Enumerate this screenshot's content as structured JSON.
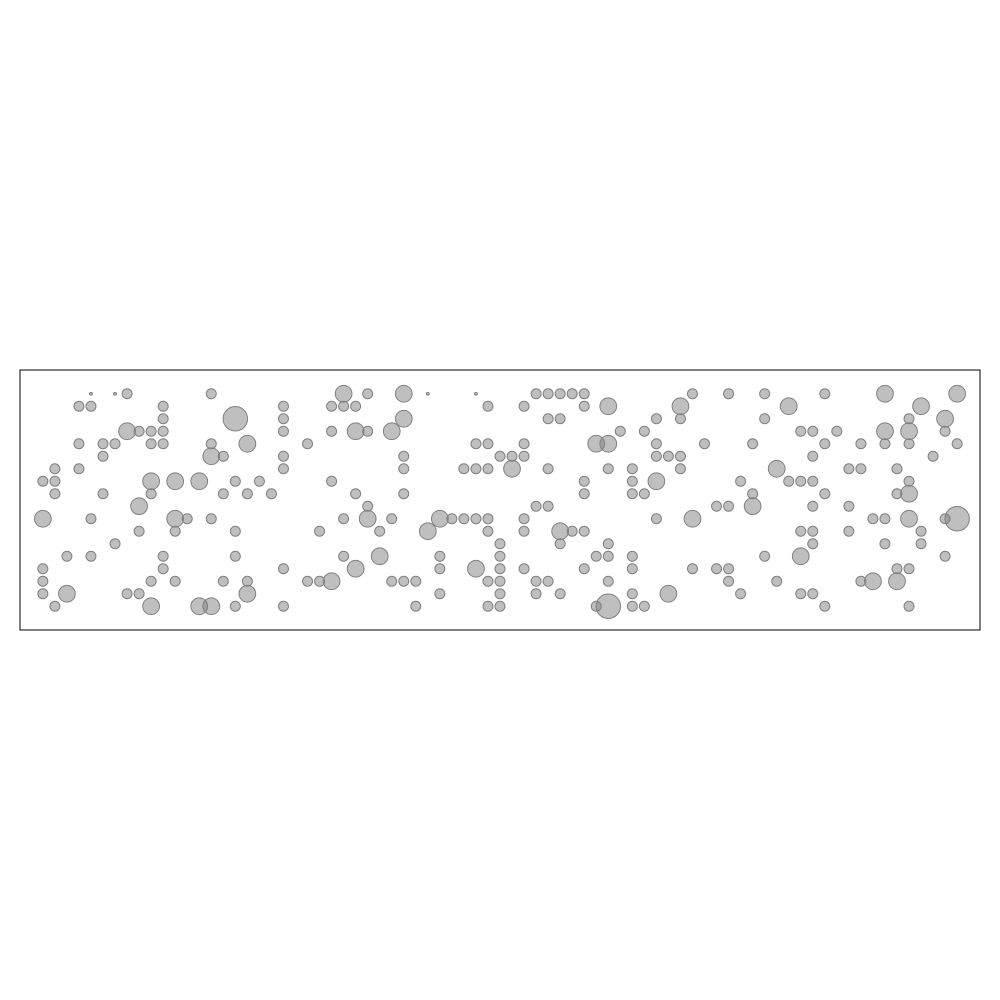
{
  "chart_data": {
    "type": "scatter",
    "color": "#808080",
    "xlim": [
      -1.9,
      77.9
    ],
    "ylim": [
      -1.9,
      18.9
    ],
    "x": [
      4,
      6,
      7,
      14,
      25,
      27,
      30,
      32,
      36,
      41,
      42,
      43,
      44,
      45,
      54,
      57,
      60,
      65,
      70,
      76,
      3,
      4,
      10,
      20,
      24,
      25,
      26,
      37,
      40,
      45,
      47,
      53,
      62,
      73,
      10,
      16,
      20,
      30,
      42,
      43,
      51,
      53,
      60,
      72,
      75,
      7,
      8,
      9,
      10,
      20,
      24,
      26,
      27,
      29,
      48,
      50,
      63,
      64,
      66,
      70,
      72,
      75,
      3,
      5,
      6,
      9,
      10,
      14,
      17,
      22,
      36,
      37,
      40,
      46,
      47,
      51,
      55,
      59,
      65,
      68,
      70,
      72,
      76,
      5,
      14,
      15,
      20,
      30,
      38,
      39,
      40,
      51,
      52,
      53,
      64,
      74,
      1,
      3,
      20,
      30,
      35,
      36,
      37,
      39,
      42,
      47,
      49,
      53,
      61,
      67,
      68,
      71,
      0,
      1,
      9,
      11,
      13,
      16,
      18,
      24,
      45,
      49,
      51,
      58,
      62,
      63,
      64,
      72,
      1,
      5,
      9,
      15,
      17,
      19,
      26,
      30,
      45,
      49,
      50,
      59,
      65,
      71,
      72,
      8,
      27,
      41,
      42,
      56,
      57,
      59,
      64,
      67,
      0,
      4,
      11,
      12,
      14,
      25,
      27,
      29,
      33,
      34,
      35,
      36,
      37,
      40,
      51,
      54,
      69,
      70,
      72,
      75,
      76,
      8,
      11,
      16,
      23,
      28,
      32,
      37,
      40,
      43,
      44,
      45,
      63,
      64,
      67,
      73,
      6,
      38,
      43,
      47,
      64,
      70,
      73,
      2,
      4,
      10,
      16,
      25,
      28,
      33,
      38,
      46,
      47,
      49,
      60,
      63,
      75,
      0,
      10,
      20,
      26,
      33,
      36,
      38,
      40,
      45,
      49,
      54,
      56,
      57,
      71,
      72,
      0,
      9,
      11,
      15,
      17,
      22,
      23,
      24,
      29,
      30,
      31,
      37,
      38,
      41,
      42,
      47,
      57,
      61,
      68,
      69,
      71,
      0,
      2,
      7,
      8,
      17,
      33,
      38,
      41,
      43,
      49,
      52,
      58,
      63,
      64,
      1,
      9,
      13,
      14,
      16,
      20,
      31,
      37,
      38,
      46,
      47,
      49,
      50,
      65,
      72
    ],
    "y": [
      17,
      17,
      17,
      17,
      17,
      17,
      17,
      17,
      17,
      17,
      17,
      17,
      17,
      17,
      17,
      17,
      17,
      17,
      17,
      17,
      16,
      16,
      16,
      16,
      16,
      16,
      16,
      16,
      16,
      16,
      16,
      16,
      16,
      16,
      15,
      15,
      15,
      15,
      15,
      15,
      15,
      15,
      15,
      15,
      15,
      14,
      14,
      14,
      14,
      14,
      14,
      14,
      14,
      14,
      14,
      14,
      14,
      14,
      14,
      14,
      14,
      14,
      13,
      13,
      13,
      13,
      13,
      13,
      13,
      13,
      13,
      13,
      13,
      13,
      13,
      13,
      13,
      13,
      13,
      13,
      13,
      13,
      13,
      12,
      12,
      12,
      12,
      12,
      12,
      12,
      12,
      12,
      12,
      12,
      12,
      12,
      11,
      11,
      11,
      11,
      11,
      11,
      11,
      11,
      11,
      11,
      11,
      11,
      11,
      11,
      11,
      11,
      10,
      10,
      10,
      10,
      10,
      10,
      10,
      10,
      10,
      10,
      10,
      10,
      10,
      10,
      10,
      10,
      9,
      9,
      9,
      9,
      9,
      9,
      9,
      9,
      9,
      9,
      9,
      9,
      9,
      9,
      9,
      8,
      8,
      8,
      8,
      8,
      8,
      8,
      8,
      8,
      7,
      7,
      7,
      7,
      7,
      7,
      7,
      7,
      7,
      7,
      7,
      7,
      7,
      7,
      7,
      7,
      7,
      7,
      7,
      7,
      7,
      6,
      6,
      6,
      6,
      6,
      6,
      6,
      6,
      6,
      6,
      6,
      6,
      6,
      6,
      6,
      5,
      5,
      5,
      5,
      5,
      5,
      5,
      4,
      4,
      4,
      4,
      4,
      4,
      4,
      4,
      4,
      4,
      4,
      4,
      4,
      4,
      3,
      3,
      3,
      3,
      3,
      3,
      3,
      3,
      3,
      3,
      3,
      3,
      3,
      3,
      3,
      2,
      2,
      2,
      2,
      2,
      2,
      2,
      2,
      2,
      2,
      2,
      2,
      2,
      2,
      2,
      2,
      2,
      2,
      2,
      2,
      2,
      1,
      1,
      1,
      1,
      1,
      1,
      1,
      1,
      1,
      1,
      1,
      1,
      1,
      1,
      0,
      0,
      0,
      0,
      0,
      0,
      0,
      0,
      0,
      0,
      0,
      0,
      0,
      0,
      0
    ],
    "sizes": [
      2,
      2,
      25,
      25,
      70,
      25,
      70,
      2,
      2,
      25,
      25,
      25,
      25,
      25,
      25,
      25,
      25,
      25,
      70,
      70,
      25,
      25,
      25,
      25,
      25,
      25,
      25,
      25,
      25,
      25,
      70,
      70,
      70,
      70,
      25,
      150,
      25,
      70,
      25,
      25,
      25,
      25,
      25,
      25,
      70,
      70,
      25,
      25,
      25,
      25,
      25,
      70,
      25,
      70,
      25,
      25,
      25,
      25,
      25,
      70,
      70,
      25,
      25,
      25,
      25,
      25,
      25,
      25,
      70,
      25,
      25,
      25,
      25,
      70,
      70,
      25,
      25,
      25,
      25,
      25,
      25,
      25,
      25,
      25,
      70,
      25,
      25,
      25,
      25,
      25,
      25,
      25,
      25,
      25,
      25,
      25,
      25,
      25,
      25,
      25,
      25,
      25,
      25,
      70,
      25,
      25,
      25,
      25,
      70,
      25,
      25,
      25,
      25,
      25,
      70,
      70,
      70,
      25,
      25,
      25,
      25,
      25,
      70,
      25,
      25,
      25,
      25,
      25,
      25,
      25,
      25,
      25,
      25,
      25,
      25,
      25,
      25,
      25,
      25,
      25,
      25,
      25,
      70,
      70,
      25,
      25,
      25,
      25,
      25,
      70,
      25,
      25,
      70,
      25,
      70,
      25,
      25,
      25,
      70,
      25,
      70,
      25,
      25,
      25,
      25,
      25,
      25,
      70,
      25,
      25,
      70,
      25,
      150,
      25,
      25,
      25,
      25,
      25,
      70,
      25,
      25,
      70,
      25,
      25,
      25,
      25,
      25,
      25,
      25,
      25,
      25,
      25,
      25,
      25,
      25,
      25,
      25,
      25,
      25,
      25,
      70,
      25,
      25,
      25,
      25,
      25,
      25,
      70,
      25,
      25,
      25,
      25,
      70,
      25,
      70,
      25,
      25,
      25,
      25,
      25,
      25,
      25,
      25,
      25,
      25,
      25,
      25,
      25,
      25,
      25,
      25,
      70,
      25,
      25,
      25,
      25,
      25,
      25,
      25,
      25,
      25,
      25,
      25,
      70,
      70,
      25,
      70,
      25,
      25,
      70,
      25,
      25,
      25,
      25,
      25,
      70,
      25,
      25,
      25,
      25,
      70,
      70,
      70,
      25,
      25,
      25,
      25,
      25,
      25,
      150,
      25,
      25,
      25,
      25
    ]
  }
}
